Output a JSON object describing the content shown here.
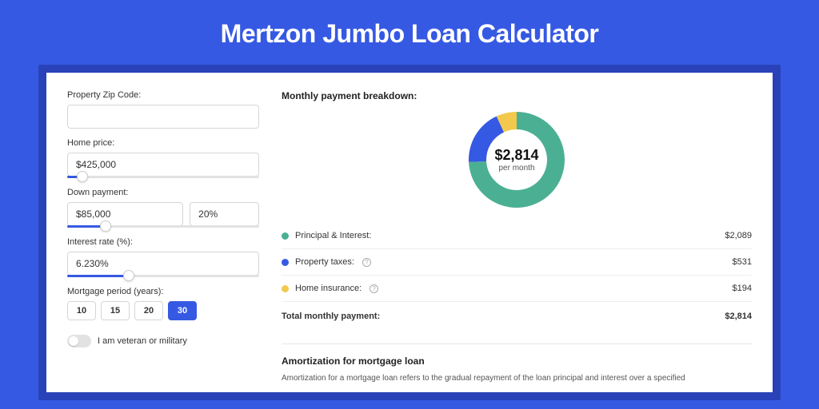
{
  "page": {
    "title": "Mertzon Jumbo Loan Calculator",
    "background_color": "#3659e3",
    "band_color": "#2942b8",
    "panel_color": "#ffffff"
  },
  "form": {
    "zip": {
      "label": "Property Zip Code:",
      "value": ""
    },
    "home_price": {
      "label": "Home price:",
      "value": "$425,000",
      "slider_percent": 8
    },
    "down_payment": {
      "label": "Down payment:",
      "amount": "$85,000",
      "percent": "20%",
      "slider_percent": 20
    },
    "interest_rate": {
      "label": "Interest rate (%):",
      "value": "6.230%",
      "slider_percent": 32
    },
    "period": {
      "label": "Mortgage period (years):",
      "options": [
        "10",
        "15",
        "20",
        "30"
      ],
      "active_index": 3
    },
    "veteran": {
      "label": "I am veteran or military",
      "checked": false
    }
  },
  "breakdown": {
    "title": "Monthly payment breakdown:",
    "donut": {
      "amount": "$2,814",
      "sub": "per month",
      "slices": [
        {
          "name": "principal_interest",
          "fraction": 0.7424,
          "color": "#4bb093"
        },
        {
          "name": "property_taxes",
          "fraction": 0.1887,
          "color": "#3659e3"
        },
        {
          "name": "home_insurance",
          "fraction": 0.0689,
          "color": "#f2c94c"
        }
      ],
      "thickness": 22,
      "rotation_start_deg": -90
    },
    "items": [
      {
        "label": "Principal & Interest:",
        "value": "$2,089",
        "color": "#4bb093",
        "info": false
      },
      {
        "label": "Property taxes:",
        "value": "$531",
        "color": "#3659e3",
        "info": true
      },
      {
        "label": "Home insurance:",
        "value": "$194",
        "color": "#f2c94c",
        "info": true
      }
    ],
    "total": {
      "label": "Total monthly payment:",
      "value": "$2,814"
    }
  },
  "amortization": {
    "title": "Amortization for mortgage loan",
    "text": "Amortization for a mortgage loan refers to the gradual repayment of the loan principal and interest over a specified"
  }
}
